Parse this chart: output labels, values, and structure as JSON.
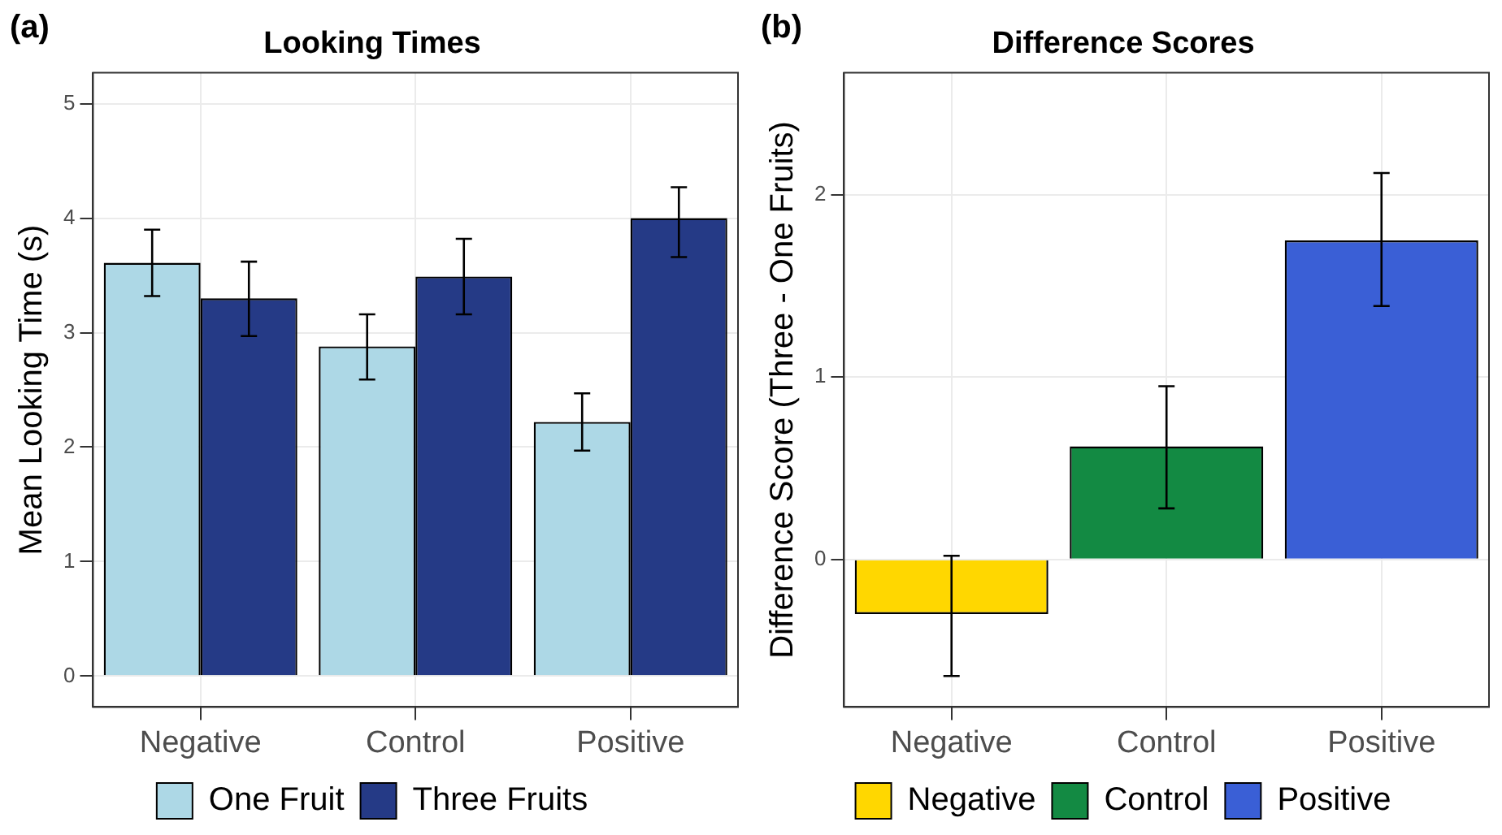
{
  "chart_data": [
    {
      "type": "bar",
      "title": "Looking Times",
      "ylabel": "Mean Looking Time (s)",
      "annotations": [
        "(a)"
      ],
      "categories": [
        "Negative",
        "Control",
        "Positive"
      ],
      "series": [
        {
          "name": "One Fruit",
          "color": "#add8e6",
          "values": [
            3.61,
            2.88,
            2.22
          ],
          "errors": [
            [
              3.32,
              3.9
            ],
            [
              2.59,
              3.16
            ],
            [
              1.97,
              2.47
            ]
          ]
        },
        {
          "name": "Three Fruits",
          "color": "#253a86",
          "values": [
            3.3,
            3.49,
            4.0
          ],
          "errors": [
            [
              2.97,
              3.62
            ],
            [
              3.16,
              3.82
            ],
            [
              3.66,
              4.27
            ]
          ]
        }
      ],
      "ylim": [
        -0.27,
        5.27
      ],
      "yticks": [
        0,
        1,
        2,
        3,
        4,
        5
      ],
      "grid": true,
      "legend": "bottom"
    },
    {
      "type": "bar",
      "title": "Difference Scores",
      "ylabel": "Difference Score (Three - One Fruits)",
      "annotations": [
        "(b)"
      ],
      "categories": [
        "Negative",
        "Control",
        "Positive"
      ],
      "series": [
        {
          "name": "Negative",
          "color": "#ffd700",
          "values": [
            -0.3,
            null,
            null
          ],
          "errors": [
            [
              -0.64,
              0.02
            ],
            null,
            null
          ]
        },
        {
          "name": "Control",
          "color": "#138a43",
          "values": [
            null,
            0.62,
            null
          ],
          "errors": [
            null,
            [
              0.28,
              0.95
            ],
            null
          ]
        },
        {
          "name": "Positive",
          "color": "#3a5fd6",
          "values": [
            null,
            null,
            1.75
          ],
          "errors": [
            null,
            null,
            [
              1.39,
              2.12
            ]
          ]
        }
      ],
      "ylim": [
        -0.81,
        2.67
      ],
      "yticks": [
        0,
        1,
        2
      ],
      "grid": true,
      "legend": "bottom"
    }
  ]
}
